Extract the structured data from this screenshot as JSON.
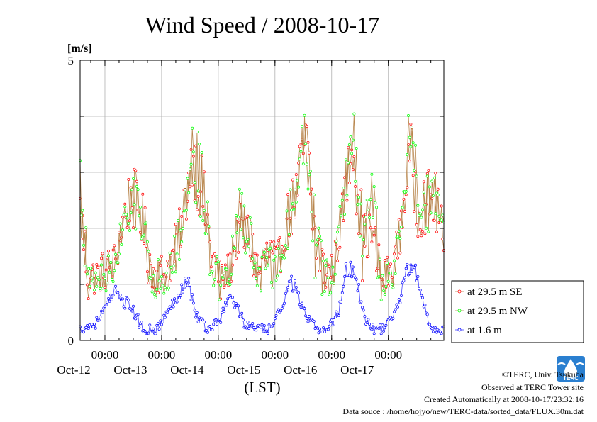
{
  "chart_data": {
    "type": "line",
    "title": "Wind Speed / 2008-10-17",
    "ylabel": "[m/s]",
    "xlabel": "(LST)",
    "ylim": [
      0,
      5
    ],
    "y_ticks": [
      0,
      1,
      2,
      3,
      4,
      5
    ],
    "y_tick_labels": [
      "0",
      "",
      "",
      "",
      "",
      "5"
    ],
    "x_range": [
      "2008-10-11 13:30",
      "2008-10-17 23:30"
    ],
    "x_ticks": [
      {
        "time": "2008-10-12 00:00",
        "time_label": "00:00",
        "date_label": "Oct-12"
      },
      {
        "time": "2008-10-13 00:00",
        "time_label": "00:00",
        "date_label": "Oct-13"
      },
      {
        "time": "2008-10-14 00:00",
        "time_label": "00:00",
        "date_label": "Oct-14"
      },
      {
        "time": "2008-10-15 00:00",
        "time_label": "00:00",
        "date_label": "Oct-15"
      },
      {
        "time": "2008-10-16 00:00",
        "time_label": "00:00",
        "date_label": "Oct-16"
      },
      {
        "time": "2008-10-17 00:00",
        "time_label": "00:00",
        "date_label": "Oct-17"
      }
    ],
    "grid": true,
    "legend_position": "bottom-right",
    "sampling_interval": "30 min",
    "series": [
      {
        "name": "at 29.5 m SE",
        "color": "#ff0000",
        "line_color": "#b8864d",
        "points": [
          [
            "2008-10-11 13:30",
            2.3
          ],
          [
            "2008-10-11 17:00",
            1.1
          ],
          [
            "2008-10-11 22:00",
            1.2
          ],
          [
            "2008-10-12 04:00",
            1.4
          ],
          [
            "2008-10-12 08:00",
            2.2
          ],
          [
            "2008-10-12 11:00",
            2.6
          ],
          [
            "2008-10-12 15:00",
            2.3
          ],
          [
            "2008-10-12 20:00",
            1.2
          ],
          [
            "2008-10-13 01:00",
            1.2
          ],
          [
            "2008-10-13 05:00",
            1.5
          ],
          [
            "2008-10-13 09:00",
            2.2
          ],
          [
            "2008-10-13 13:00",
            3.3
          ],
          [
            "2008-10-13 17:00",
            2.7
          ],
          [
            "2008-10-13 21:00",
            1.6
          ],
          [
            "2008-10-14 01:00",
            1.0
          ],
          [
            "2008-10-14 05:00",
            1.3
          ],
          [
            "2008-10-14 09:00",
            2.0
          ],
          [
            "2008-10-14 13:00",
            1.8
          ],
          [
            "2008-10-14 17:00",
            1.2
          ],
          [
            "2008-10-14 21:00",
            1.6
          ],
          [
            "2008-10-15 01:00",
            1.3
          ],
          [
            "2008-10-15 05:00",
            2.1
          ],
          [
            "2008-10-15 09:00",
            2.6
          ],
          [
            "2008-10-15 13:00",
            3.6
          ],
          [
            "2008-10-15 17:00",
            1.8
          ],
          [
            "2008-10-15 21:00",
            1.2
          ],
          [
            "2008-10-16 01:00",
            1.3
          ],
          [
            "2008-10-16 05:00",
            2.4
          ],
          [
            "2008-10-16 09:00",
            3.6
          ],
          [
            "2008-10-16 13:00",
            1.8
          ],
          [
            "2008-10-16 17:00",
            1.9
          ],
          [
            "2008-10-16 21:00",
            1.1
          ],
          [
            "2008-10-17 01:00",
            1.2
          ],
          [
            "2008-10-17 05:00",
            1.9
          ],
          [
            "2008-10-17 09:00",
            3.3
          ],
          [
            "2008-10-17 13:00",
            2.4
          ],
          [
            "2008-10-17 17:00",
            2.5
          ],
          [
            "2008-10-17 21:00",
            2.4
          ],
          [
            "2008-10-17 23:30",
            1.5
          ]
        ]
      },
      {
        "name": "at 29.5 m NW",
        "color": "#00ff00",
        "line_color": "#b8864d",
        "points": [
          [
            "2008-10-11 13:30",
            2.9
          ],
          [
            "2008-10-11 17:00",
            1.0
          ],
          [
            "2008-10-11 22:00",
            1.1
          ],
          [
            "2008-10-12 04:00",
            1.3
          ],
          [
            "2008-10-12 08:00",
            2.0
          ],
          [
            "2008-10-12 11:00",
            2.3
          ],
          [
            "2008-10-12 15:00",
            2.5
          ],
          [
            "2008-10-12 20:00",
            1.1
          ],
          [
            "2008-10-13 01:00",
            1.1
          ],
          [
            "2008-10-13 05:00",
            1.4
          ],
          [
            "2008-10-13 09:00",
            2.1
          ],
          [
            "2008-10-13 13:00",
            3.4
          ],
          [
            "2008-10-13 17:00",
            2.8
          ],
          [
            "2008-10-13 21:00",
            1.5
          ],
          [
            "2008-10-14 01:00",
            0.9
          ],
          [
            "2008-10-14 05:00",
            1.2
          ],
          [
            "2008-10-14 09:00",
            2.4
          ],
          [
            "2008-10-14 13:00",
            1.9
          ],
          [
            "2008-10-14 17:00",
            1.1
          ],
          [
            "2008-10-14 21:00",
            1.5
          ],
          [
            "2008-10-15 01:00",
            1.2
          ],
          [
            "2008-10-15 05:00",
            2.0
          ],
          [
            "2008-10-15 09:00",
            2.7
          ],
          [
            "2008-10-15 13:00",
            3.9
          ],
          [
            "2008-10-15 17:00",
            1.9
          ],
          [
            "2008-10-15 21:00",
            1.1
          ],
          [
            "2008-10-16 01:00",
            1.2
          ],
          [
            "2008-10-16 05:00",
            2.6
          ],
          [
            "2008-10-16 09:00",
            3.7
          ],
          [
            "2008-10-16 13:00",
            1.9
          ],
          [
            "2008-10-16 17:00",
            2.7
          ],
          [
            "2008-10-16 21:00",
            1.0
          ],
          [
            "2008-10-17 01:00",
            1.1
          ],
          [
            "2008-10-17 05:00",
            1.8
          ],
          [
            "2008-10-17 09:00",
            3.8
          ],
          [
            "2008-10-17 13:00",
            2.5
          ],
          [
            "2008-10-17 17:00",
            2.4
          ],
          [
            "2008-10-17 21:00",
            2.5
          ],
          [
            "2008-10-17 23:30",
            1.9
          ]
        ]
      },
      {
        "name": "at 1.6 m",
        "color": "#0000ff",
        "line_color": "#4444ff",
        "points": [
          [
            "2008-10-11 13:30",
            0.2
          ],
          [
            "2008-10-11 20:00",
            0.3
          ],
          [
            "2008-10-12 02:00",
            0.7
          ],
          [
            "2008-10-12 05:00",
            0.9
          ],
          [
            "2008-10-12 08:00",
            0.7
          ],
          [
            "2008-10-12 11:00",
            0.6
          ],
          [
            "2008-10-12 16:00",
            0.2
          ],
          [
            "2008-10-12 22:00",
            0.2
          ],
          [
            "2008-10-13 04:00",
            0.6
          ],
          [
            "2008-10-13 08:00",
            0.9
          ],
          [
            "2008-10-13 11:00",
            1.1
          ],
          [
            "2008-10-13 15:00",
            0.4
          ],
          [
            "2008-10-13 20:00",
            0.2
          ],
          [
            "2008-10-14 01:00",
            0.4
          ],
          [
            "2008-10-14 05:00",
            0.8
          ],
          [
            "2008-10-14 08:00",
            0.6
          ],
          [
            "2008-10-14 11:00",
            0.3
          ],
          [
            "2008-10-14 17:00",
            0.2
          ],
          [
            "2008-10-14 22:00",
            0.2
          ],
          [
            "2008-10-15 03:00",
            0.6
          ],
          [
            "2008-10-15 06:00",
            1.1
          ],
          [
            "2008-10-15 09:00",
            0.9
          ],
          [
            "2008-10-15 13:00",
            0.4
          ],
          [
            "2008-10-15 18:00",
            0.2
          ],
          [
            "2008-10-15 22:00",
            0.2
          ],
          [
            "2008-10-16 03:00",
            0.5
          ],
          [
            "2008-10-16 06:00",
            1.3
          ],
          [
            "2008-10-16 10:00",
            1.2
          ],
          [
            "2008-10-16 14:00",
            0.4
          ],
          [
            "2008-10-16 18:00",
            0.2
          ],
          [
            "2008-10-16 22:00",
            0.2
          ],
          [
            "2008-10-17 04:00",
            0.6
          ],
          [
            "2008-10-17 08:00",
            1.3
          ],
          [
            "2008-10-17 12:00",
            1.2
          ],
          [
            "2008-10-17 16:00",
            0.4
          ],
          [
            "2008-10-17 20:00",
            0.2
          ],
          [
            "2008-10-17 23:30",
            0.2
          ]
        ]
      }
    ]
  },
  "footer": {
    "copyright": "©TERC, Univ. Tsukuba",
    "observed": "Observed at TERC Tower site",
    "created": "Created Automatically at 2008-10-17/23:32:16",
    "source": "Data souce : /home/hojyo/new/TERC-data/sorted_data/FLUX.30m.dat"
  },
  "logo": {
    "text": "TERC",
    "color": "#2a7fd0"
  }
}
